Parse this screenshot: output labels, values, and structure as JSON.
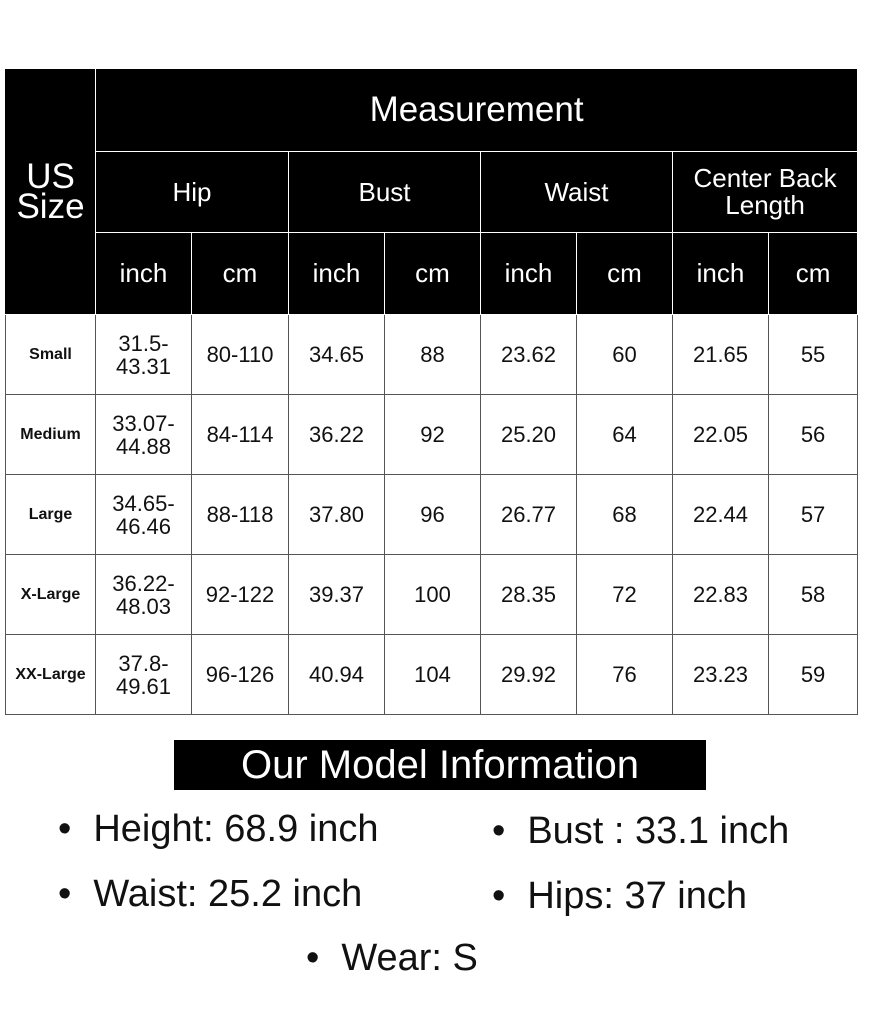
{
  "header": {
    "title": "Measurement",
    "size_col": "US Size",
    "groups": [
      "Hip",
      "Bust",
      "Waist",
      "Center Back Length"
    ],
    "units": [
      "inch",
      "cm",
      "inch",
      "cm",
      "inch",
      "cm",
      "inch",
      "cm"
    ]
  },
  "rows": [
    {
      "size": "Small",
      "values": [
        "31.5-43.31",
        "80-110",
        "34.65",
        "88",
        "23.62",
        "60",
        "21.65",
        "55"
      ]
    },
    {
      "size": "Medium",
      "values": [
        "33.07-44.88",
        "84-114",
        "36.22",
        "92",
        "25.20",
        "64",
        "22.05",
        "56"
      ]
    },
    {
      "size": "Large",
      "values": [
        "34.65-46.46",
        "88-118",
        "37.80",
        "96",
        "26.77",
        "68",
        "22.44",
        "57"
      ]
    },
    {
      "size": "X-Large",
      "values": [
        "36.22-48.03",
        "92-122",
        "39.37",
        "100",
        "28.35",
        "72",
        "22.83",
        "58"
      ]
    },
    {
      "size": "XX-Large",
      "values": [
        "37.8-49.61",
        "96-126",
        "40.94",
        "104",
        "29.92",
        "76",
        "23.23",
        "59"
      ]
    }
  ],
  "model": {
    "title": "Our Model Information",
    "height": "Height: 68.9 inch",
    "bust": "Bust : 33.1 inch",
    "waist": "Waist: 25.2 inch",
    "hips": "Hips: 37 inch",
    "wear": "Wear:  S"
  }
}
